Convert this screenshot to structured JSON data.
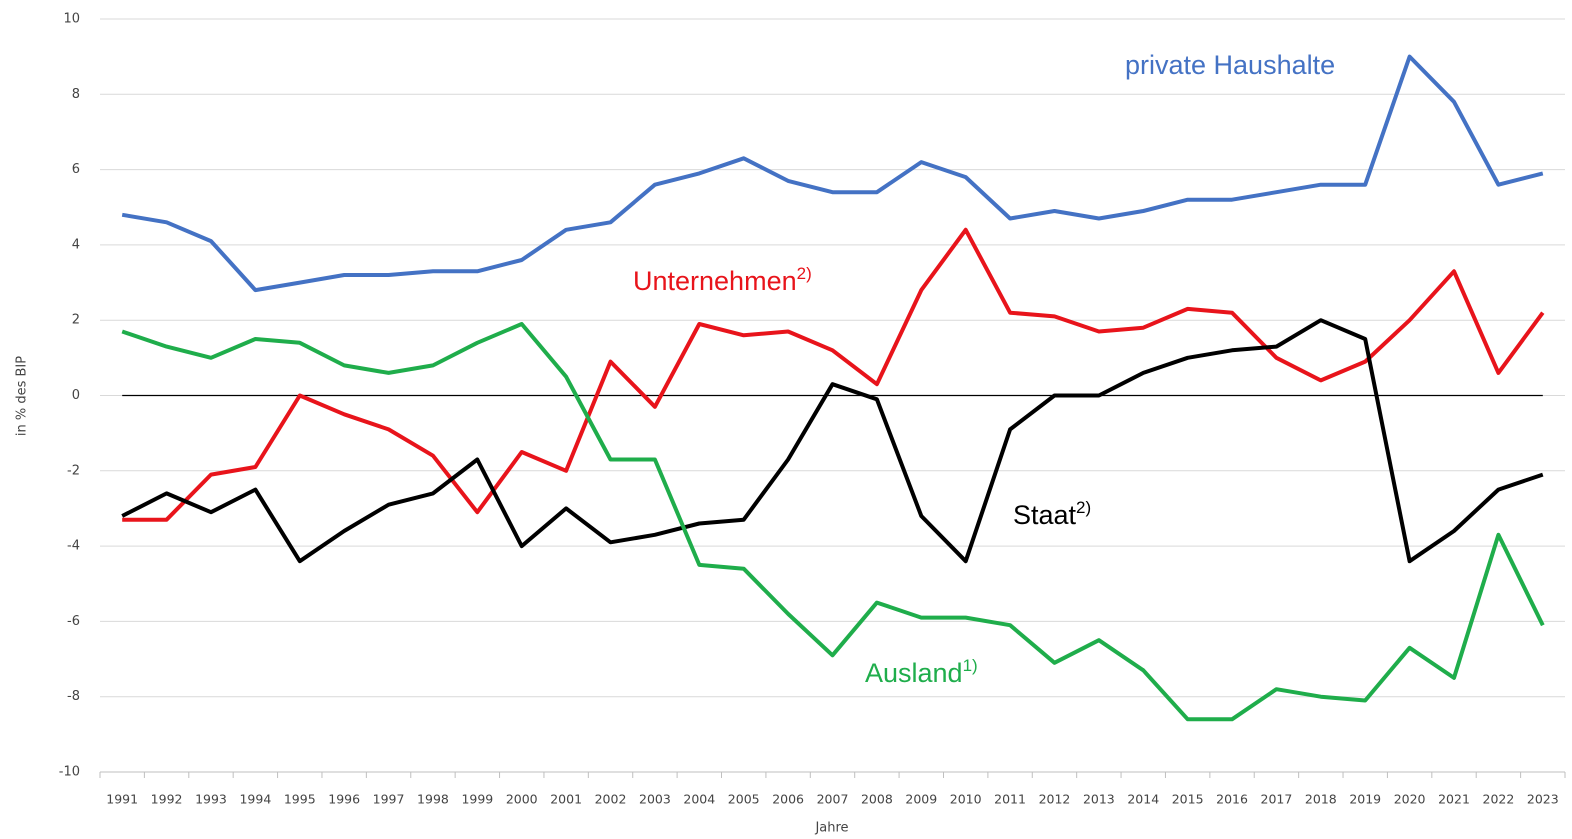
{
  "chart_data": {
    "type": "line",
    "y_label": "in % des BIP",
    "x_label": "Jahre",
    "categories": [
      "1991",
      "1992",
      "1993",
      "1994",
      "1995",
      "1996",
      "1997",
      "1998",
      "1999",
      "2000",
      "2001",
      "2002",
      "2003",
      "2004",
      "2005",
      "2006",
      "2007",
      "2008",
      "2009",
      "2010",
      "2011",
      "2012",
      "2013",
      "2014",
      "2015",
      "2016",
      "2017",
      "2018",
      "2019",
      "2020",
      "2021",
      "2022",
      "2023"
    ],
    "ylim": [
      -10,
      10
    ],
    "yticks": [
      -10,
      -8,
      -6,
      -4,
      -2,
      0,
      2,
      4,
      6,
      8,
      10
    ],
    "grid": true,
    "series": [
      {
        "name": "private  Haushalte",
        "color": "#4472c4",
        "values": [
          4.8,
          4.6,
          4.1,
          2.8,
          3.0,
          3.2,
          3.2,
          3.3,
          3.3,
          3.6,
          4.4,
          4.6,
          5.6,
          5.9,
          6.3,
          5.7,
          5.4,
          5.4,
          6.2,
          5.8,
          4.7,
          4.9,
          4.7,
          4.9,
          5.2,
          5.2,
          5.4,
          5.6,
          5.6,
          9.0,
          7.8,
          5.6,
          5.9
        ]
      },
      {
        "name": "Unternehmen",
        "footnote": "2)",
        "color": "#e8141b",
        "values": [
          -3.3,
          -3.3,
          -2.1,
          -1.9,
          0.0,
          -0.5,
          -0.9,
          -1.6,
          -3.1,
          -1.5,
          -2.0,
          0.9,
          -0.3,
          1.9,
          1.6,
          1.7,
          1.2,
          0.3,
          2.8,
          4.4,
          2.2,
          2.1,
          1.7,
          1.8,
          2.3,
          2.2,
          1.0,
          0.4,
          0.9,
          2.0,
          3.3,
          0.6,
          2.2
        ]
      },
      {
        "name": "Staat",
        "footnote": "2)",
        "color": "#000000",
        "values": [
          -3.2,
          -2.6,
          -3.1,
          -2.5,
          -4.4,
          -3.6,
          -2.9,
          -2.6,
          -1.7,
          -4.0,
          -3.0,
          -3.9,
          -3.7,
          -3.4,
          -3.3,
          -1.7,
          0.3,
          -0.1,
          -3.2,
          -4.4,
          -0.9,
          0.0,
          0.0,
          0.6,
          1.0,
          1.2,
          1.3,
          2.0,
          1.5,
          -4.4,
          -3.6,
          -2.5,
          -2.1
        ]
      },
      {
        "name": "Ausland",
        "footnote": "1)",
        "color": "#1fad4b",
        "values": [
          1.7,
          1.3,
          1.0,
          1.5,
          1.4,
          0.8,
          0.6,
          0.8,
          1.4,
          1.9,
          0.5,
          -1.7,
          -1.7,
          -4.5,
          -4.6,
          -5.8,
          -6.9,
          -5.5,
          -5.9,
          -5.9,
          -6.1,
          -7.1,
          -6.5,
          -7.3,
          -8.6,
          -8.6,
          -7.8,
          -8.0,
          -8.1,
          -6.7,
          -7.5,
          -3.7,
          -6.1
        ]
      }
    ]
  }
}
